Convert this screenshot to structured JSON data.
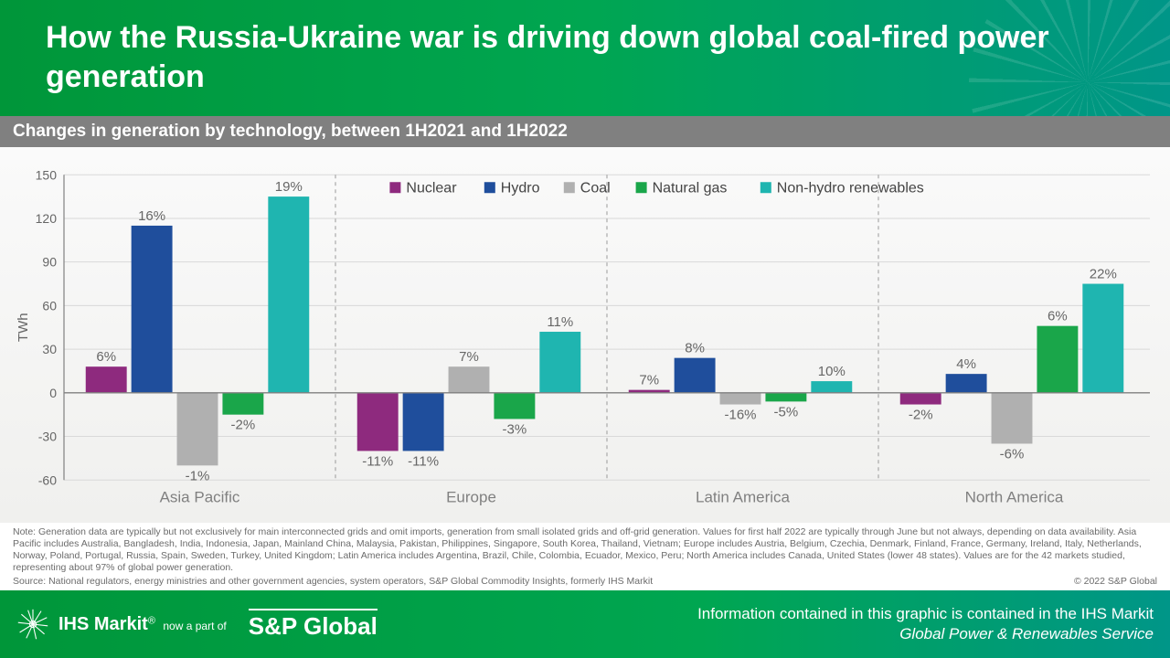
{
  "header": {
    "title": "How the Russia-Ukraine war is driving down global coal-fired power generation"
  },
  "subhead": "Changes in generation by technology, between 1H2021 and 1H2022",
  "chart": {
    "type": "bar",
    "ylabel": "TWh",
    "ylim": [
      -60,
      150
    ],
    "ytick_step": 30,
    "background_color": "#f7f7f5",
    "grid_color": "#d9d9d9",
    "axis_color": "#808080",
    "bar_group_gap": 0.12,
    "series": [
      {
        "name": "Nuclear",
        "color": "#8e2a7e"
      },
      {
        "name": "Hydro",
        "color": "#1f4e9c"
      },
      {
        "name": "Coal",
        "color": "#b0b0b0"
      },
      {
        "name": "Natural gas",
        "color": "#1aa64a"
      },
      {
        "name": "Non-hydro renewables",
        "color": "#1fb5b0"
      }
    ],
    "groups": [
      {
        "name": "Asia Pacific",
        "bars": [
          {
            "value": 18,
            "label": "6%"
          },
          {
            "value": 115,
            "label": "16%"
          },
          {
            "value": -50,
            "label": "-1%"
          },
          {
            "value": -15,
            "label": "-2%"
          },
          {
            "value": 135,
            "label": "19%"
          }
        ]
      },
      {
        "name": "Europe",
        "bars": [
          {
            "value": -40,
            "label": "-11%"
          },
          {
            "value": -40,
            "label": "-11%"
          },
          {
            "value": 18,
            "label": "7%"
          },
          {
            "value": -18,
            "label": "-3%"
          },
          {
            "value": 42,
            "label": "11%"
          }
        ]
      },
      {
        "name": "Latin America",
        "bars": [
          {
            "value": 2,
            "label": "7%"
          },
          {
            "value": 24,
            "label": "8%"
          },
          {
            "value": -8,
            "label": "-16%"
          },
          {
            "value": -6,
            "label": "-5%"
          },
          {
            "value": 8,
            "label": "10%"
          }
        ]
      },
      {
        "name": "North America",
        "bars": [
          {
            "value": -8,
            "label": "-2%"
          },
          {
            "value": 13,
            "label": "4%"
          },
          {
            "value": -35,
            "label": "-6%"
          },
          {
            "value": 46,
            "label": "6%"
          },
          {
            "value": 75,
            "label": "22%"
          }
        ]
      }
    ],
    "label_fontsize": 15,
    "tick_fontsize": 14,
    "cat_fontsize": 17
  },
  "notes": "Note: Generation data are typically but not exclusively for main interconnected grids and omit imports, generation from small isolated grids and off-grid generation. Values for first half 2022 are typically through June but not always, depending on data availability. Asia Pacific includes Australia, Bangladesh, India, Indonesia, Japan, Mainland China, Malaysia, Pakistan, Philippines, Singapore, South Korea, Thailand, Vietnam; Europe includes Austria, Belgium, Czechia, Denmark, Finland, France, Germany, Ireland, Italy, Netherlands, Norway, Poland, Portugal, Russia, Spain, Sweden, Turkey, United Kingdom; Latin America includes Argentina, Brazil, Chile, Colombia, Ecuador, Mexico, Peru; North America includes Canada, United States (lower 48 states). Values are for the 42 markets studied, representing about 97% of global power generation.",
  "source": "Source: National regulators, energy ministries and other government agencies, system operators, S&P Global Commodity Insights, formerly IHS Markit",
  "copyright": "© 2022 S&P Global",
  "footer": {
    "ihs": "IHS Markit",
    "nowpart": "now a part of",
    "sp": "S&P Global",
    "right_line1": "Information contained in this graphic is contained in the IHS Markit",
    "right_line2": "Global Power & Renewables Service"
  }
}
